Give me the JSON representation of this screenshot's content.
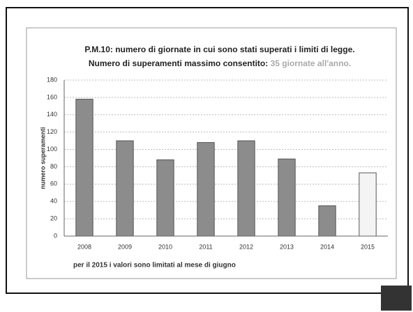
{
  "chart_data": {
    "type": "bar",
    "title": "P.M.10:  numero di giornate in cui sono stati superati  i limiti di legge.",
    "subtitle": "Numero di superamenti massimo consentito: ",
    "subtitle_highlight": "35 giornate all'anno.",
    "y_label": "numero superamenti",
    "note": "per il 2015 i valori sono limitati al mese di giugno",
    "categories": [
      "2008",
      "2009",
      "2010",
      "2011",
      "2012",
      "2013",
      "2014",
      "2015"
    ],
    "values": [
      158,
      110,
      88,
      108,
      110,
      89,
      35,
      73
    ],
    "colors": [
      "#8c8c8c",
      "#8c8c8c",
      "#8c8c8c",
      "#8c8c8c",
      "#8c8c8c",
      "#8c8c8c",
      "#8c8c8c",
      "#f4f4f4"
    ],
    "ylim": [
      0,
      180
    ],
    "yticks": [
      0,
      20,
      40,
      60,
      80,
      100,
      120,
      140,
      160,
      180
    ],
    "grid": true
  }
}
